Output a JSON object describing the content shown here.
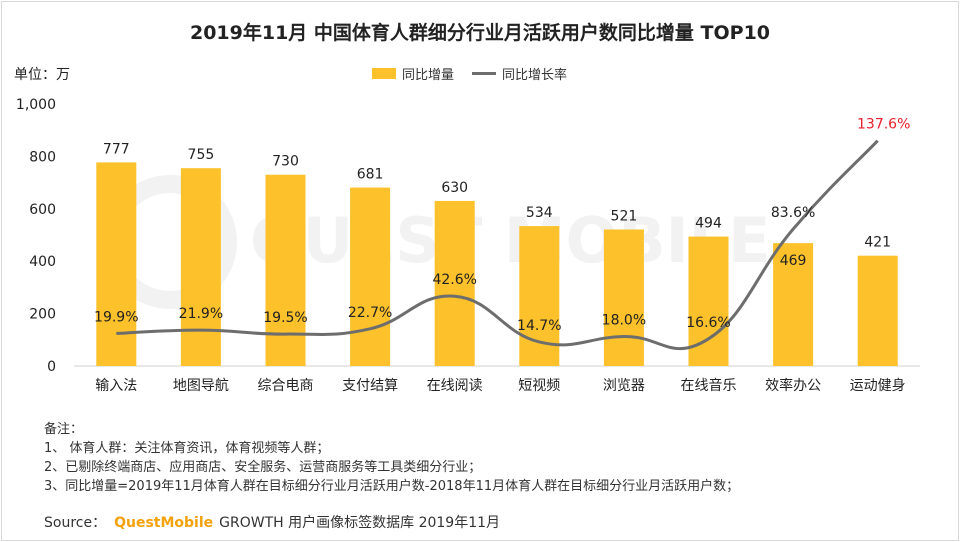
{
  "colors": {
    "bar": "#FDC12B",
    "line": "#6D6D6D",
    "highlight": "#E8202A",
    "watermark": "#F2F2F2"
  },
  "chart_data": {
    "type": "bar",
    "title": "2019年11月 中国体育人群细分行业月活跃用户数同比增量 TOP10",
    "unit_label": "单位：万",
    "categories": [
      "输入法",
      "地图导航",
      "综合电商",
      "支付结算",
      "在线阅读",
      "短视频",
      "浏览器",
      "在线音乐",
      "效率办公",
      "运动健身"
    ],
    "series": [
      {
        "name": "同比增量",
        "type": "bar",
        "values": [
          777,
          755,
          730,
          681,
          630,
          534,
          521,
          494,
          469,
          421
        ]
      },
      {
        "name": "同比增长率",
        "type": "line",
        "values": [
          19.9,
          21.9,
          19.5,
          22.7,
          42.6,
          14.7,
          18.0,
          16.6,
          83.6,
          137.6
        ],
        "labels": [
          "19.9%",
          "21.9%",
          "19.5%",
          "22.7%",
          "42.6%",
          "14.7%",
          "18.0%",
          "16.6%",
          "83.6%",
          "137.6%"
        ]
      }
    ],
    "yticks": [
      "0",
      "200",
      "400",
      "600",
      "800",
      "1,000"
    ],
    "ylim": [
      0,
      1000
    ],
    "line_ylim": [
      0,
      160
    ],
    "legend_position": "top-center",
    "grid": false
  },
  "notes": {
    "heading": "备注：",
    "items": [
      "1、 体育人群：关注体育资讯，体育视频等人群；",
      "2、已剔除终端商店、应用商店、安全服务、运营商服务等工具类细分行业；",
      "3、同比增量=2019年11月体育人群在目标细分行业月活跃用户数-2018年11月体育人群在目标细分行业月活跃用户数；"
    ]
  },
  "source": {
    "label": "Source：",
    "brand": "QuestMobile",
    "text": "GROWTH 用户画像标签数据库 2019年11月"
  },
  "watermark": "QUEST MOBILE"
}
